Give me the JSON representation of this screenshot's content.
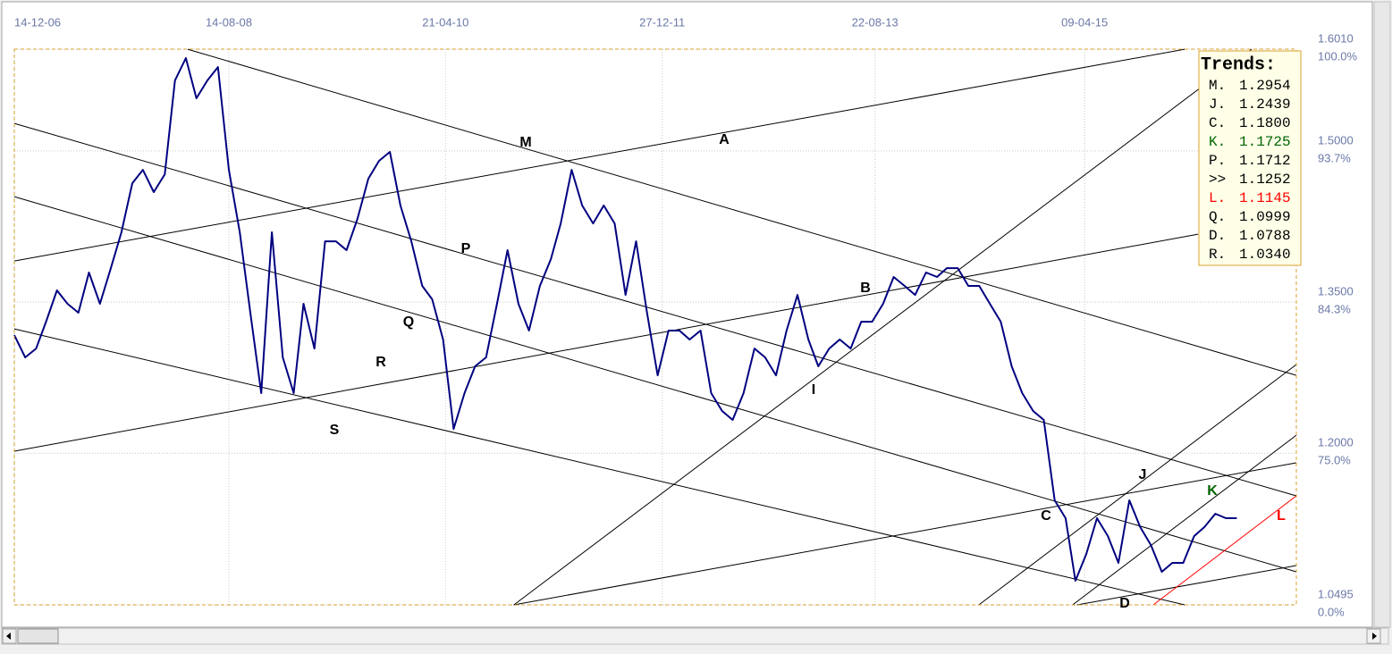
{
  "chart_data": {
    "type": "line",
    "color": "#000080",
    "x": [
      "2006-12-14",
      "2007-01-14",
      "2007-02-14",
      "2007-03-14",
      "2007-04-14",
      "2007-05-14",
      "2007-06-14",
      "2007-07-14",
      "2007-08-14",
      "2007-09-14",
      "2007-10-14",
      "2007-11-14",
      "2007-12-14",
      "2008-01-14",
      "2008-02-14",
      "2008-03-14",
      "2008-04-14",
      "2008-05-14",
      "2008-06-14",
      "2008-07-14",
      "2008-08-14",
      "2008-09-14",
      "2008-10-14",
      "2008-11-14",
      "2008-12-14",
      "2009-01-14",
      "2009-02-14",
      "2009-03-14",
      "2009-04-14",
      "2009-05-14",
      "2009-06-14",
      "2009-07-14",
      "2009-08-14",
      "2009-09-14",
      "2009-10-14",
      "2009-11-14",
      "2009-12-14",
      "2010-01-14",
      "2010-02-14",
      "2010-03-14",
      "2010-04-14",
      "2010-05-14",
      "2010-06-14",
      "2010-07-14",
      "2010-08-14",
      "2010-09-14",
      "2010-10-14",
      "2010-11-14",
      "2010-12-14",
      "2011-01-14",
      "2011-02-14",
      "2011-03-14",
      "2011-04-14",
      "2011-05-14",
      "2011-06-14",
      "2011-07-14",
      "2011-08-14",
      "2011-09-14",
      "2011-10-14",
      "2011-11-14",
      "2011-12-14",
      "2012-01-14",
      "2012-02-14",
      "2012-03-14",
      "2012-04-14",
      "2012-05-14",
      "2012-06-14",
      "2012-07-14",
      "2012-08-14",
      "2012-09-14",
      "2012-10-14",
      "2012-11-14",
      "2012-12-14",
      "2013-01-14",
      "2013-02-14",
      "2013-03-14",
      "2013-04-14",
      "2013-05-14",
      "2013-06-14",
      "2013-07-14",
      "2013-08-14",
      "2013-09-14",
      "2013-10-14",
      "2013-11-14",
      "2013-12-14",
      "2014-01-14",
      "2014-02-14",
      "2014-03-14",
      "2014-04-14",
      "2014-05-14",
      "2014-06-14",
      "2014-07-14",
      "2014-08-14",
      "2014-09-14",
      "2014-10-14",
      "2014-11-14",
      "2014-12-14",
      "2015-01-14",
      "2015-02-14",
      "2015-03-14",
      "2015-04-14",
      "2015-05-14",
      "2015-06-14",
      "2015-07-14",
      "2015-08-14",
      "2015-09-14",
      "2015-10-14",
      "2015-11-14",
      "2015-12-14",
      "2016-01-14",
      "2016-02-14",
      "2016-03-14",
      "2016-04-14",
      "2016-05-14",
      "2016-06-14"
    ],
    "values": [
      1.3172,
      1.2951,
      1.3039,
      1.3305,
      1.3616,
      1.3483,
      1.3394,
      1.3793,
      1.3483,
      1.3837,
      1.4192,
      1.4679,
      1.4812,
      1.4591,
      1.4768,
      1.5699,
      1.5921,
      1.5522,
      1.5699,
      1.5832,
      1.4812,
      1.4192,
      1.3394,
      1.2596,
      1.4192,
      1.2951,
      1.2596,
      1.3483,
      1.3039,
      1.4103,
      1.4103,
      1.4015,
      1.4325,
      1.4724,
      1.4901,
      1.499,
      1.4458,
      1.4103,
      1.366,
      1.3527,
      1.3128,
      1.2241,
      1.2596,
      1.2862,
      1.2951,
      1.3483,
      1.4015,
      1.3483,
      1.3217,
      1.366,
      1.3926,
      1.428,
      1.4812,
      1.4458,
      1.428,
      1.4458,
      1.428,
      1.3571,
      1.4103,
      1.3394,
      1.2773,
      1.3217,
      1.3217,
      1.3128,
      1.3217,
      1.2596,
      1.2419,
      1.233,
      1.2596,
      1.3039,
      1.2951,
      1.2773,
      1.3217,
      1.3571,
      1.3128,
      1.2862,
      1.3039,
      1.3128,
      1.3039,
      1.3305,
      1.3305,
      1.3483,
      1.3749,
      1.366,
      1.3571,
      1.3793,
      1.3749,
      1.3837,
      1.3837,
      1.366,
      1.366,
      1.3483,
      1.3305,
      1.2862,
      1.2596,
      1.2419,
      1.233,
      1.1532,
      1.1355,
      1.0734,
      1.1,
      1.1355,
      1.1178,
      1.0912,
      1.1532,
      1.1266,
      1.1089,
      1.0823,
      1.0912,
      1.0912,
      1.1178,
      1.1266,
      1.1399,
      1.1355,
      1.1355
    ],
    "xlim": [
      "2006-12-14",
      "2016-11-30"
    ],
    "xticks": [
      {
        "value": "2006-12-14",
        "label": "14-12-06"
      },
      {
        "value": "2008-08-14",
        "label": "14-08-08"
      },
      {
        "value": "2010-04-21",
        "label": "21-04-10"
      },
      {
        "value": "2011-12-27",
        "label": "27-12-11"
      },
      {
        "value": "2013-08-22",
        "label": "22-08-13"
      },
      {
        "value": "2015-04-09",
        "label": "09-04-15"
      }
    ],
    "ylim": [
      1.0495,
      1.601
    ],
    "yticks": [
      {
        "value": 1.601,
        "label": "1.6010"
      },
      {
        "value": 1.5,
        "label": "1.5000"
      },
      {
        "value": 1.35,
        "label": "1.3500"
      },
      {
        "value": 1.2,
        "label": "1.2000"
      },
      {
        "value": 1.0495,
        "label": "1.0495"
      }
    ],
    "ytick_percent_labels": [
      "100.0%",
      "93.7%",
      "84.3%",
      "75.0%",
      "0.0%"
    ],
    "grid": true,
    "trendlines": [
      {
        "x": [
          "2008-04-19",
          "2016-11-30"
        ],
        "y": [
          1.6009,
          1.2773
        ],
        "color": "#000000"
      },
      {
        "x": [
          "2006-12-14",
          "2016-01-18"
        ],
        "y": [
          1.3908,
          1.6009
        ],
        "color": "#000000"
      },
      {
        "x": [
          "2006-12-14",
          "2016-11-30"
        ],
        "y": [
          1.5273,
          1.1577
        ],
        "color": "#000000"
      },
      {
        "x": [
          "2006-12-14",
          "2016-11-30"
        ],
        "y": [
          1.4546,
          1.0823
        ],
        "color": "#000000"
      },
      {
        "x": [
          "2006-12-14",
          "2016-01-18"
        ],
        "y": [
          1.3234,
          1.0495
        ],
        "color": "#000000"
      },
      {
        "x": [
          "2006-12-14",
          "2016-02-25"
        ],
        "y": [
          1.202,
          1.4174
        ],
        "color": "#000000"
      },
      {
        "x": [
          "2010-11-01",
          "2016-07-26"
        ],
        "y": [
          1.0495,
          1.6009
        ],
        "color": "#000000"
      },
      {
        "x": [
          "2010-11-01",
          "2016-11-30"
        ],
        "y": [
          1.0495,
          1.1905
        ],
        "color": "#000000"
      },
      {
        "x": [
          "2014-06-13",
          "2016-11-30"
        ],
        "y": [
          1.0495,
          1.288
        ],
        "color": "#000000"
      },
      {
        "x": [
          "2015-03-06",
          "2016-11-30"
        ],
        "y": [
          1.0495,
          1.2179
        ],
        "color": "#000000"
      },
      {
        "x": [
          "2015-03-19",
          "2016-11-30"
        ],
        "y": [
          1.0495,
          1.0885
        ],
        "color": "#000000"
      },
      {
        "x": [
          "2015-10-21",
          "2016-11-30"
        ],
        "y": [
          1.0495,
          1.1577
        ],
        "color": "#ff0000"
      }
    ],
    "annotations": [
      {
        "text": "M",
        "color": "#000000"
      },
      {
        "text": "A",
        "color": "#000000"
      },
      {
        "text": "P",
        "color": "#000000"
      },
      {
        "text": "Q",
        "color": "#000000"
      },
      {
        "text": "R",
        "color": "#000000"
      },
      {
        "text": "S",
        "color": "#000000"
      },
      {
        "text": "B",
        "color": "#000000"
      },
      {
        "text": "I",
        "color": "#000000"
      },
      {
        "text": "C",
        "color": "#000000"
      },
      {
        "text": "J",
        "color": "#000000"
      },
      {
        "text": "K",
        "color": "#006400"
      },
      {
        "text": "L",
        "color": "#ff0000"
      },
      {
        "text": "D",
        "color": "#000000"
      }
    ],
    "trends": {
      "title": "Trends:",
      "items": [
        {
          "label": "M.",
          "value": "1.2954",
          "color": "#000000"
        },
        {
          "label": "J.",
          "value": "1.2439",
          "color": "#000000"
        },
        {
          "label": "C.",
          "value": "1.1800",
          "color": "#000000"
        },
        {
          "label": "K.",
          "value": "1.1725",
          "color": "#006400"
        },
        {
          "label": "P.",
          "value": "1.1712",
          "color": "#000000"
        },
        {
          "label": ">>",
          "value": "1.1252",
          "color": "#000000"
        },
        {
          "label": "L.",
          "value": "1.1145",
          "color": "#ff0000"
        },
        {
          "label": "Q.",
          "value": "1.0999",
          "color": "#000000"
        },
        {
          "label": "D.",
          "value": "1.0788",
          "color": "#000000"
        },
        {
          "label": "R.",
          "value": "1.0340",
          "color": "#000000"
        }
      ]
    }
  }
}
